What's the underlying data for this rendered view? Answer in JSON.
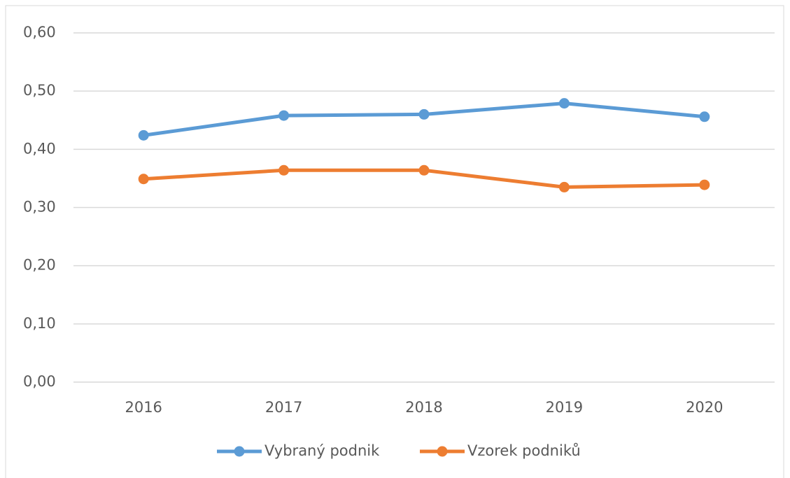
{
  "chart_data": {
    "type": "line",
    "categories": [
      "2016",
      "2017",
      "2018",
      "2019",
      "2020"
    ],
    "series": [
      {
        "name": "Vybraný podnik",
        "color": "#5b9bd5",
        "values": [
          0.424,
          0.458,
          0.46,
          0.479,
          0.456
        ]
      },
      {
        "name": "Vzorek podniků",
        "color": "#ed7d31",
        "values": [
          0.349,
          0.364,
          0.364,
          0.335,
          0.339
        ]
      }
    ],
    "ylim": [
      0,
      0.6
    ],
    "yticks": [
      {
        "value": 0,
        "label": "0,00"
      },
      {
        "value": 0.1,
        "label": "0,10"
      },
      {
        "value": 0.2,
        "label": "0,20"
      },
      {
        "value": 0.3,
        "label": "0,30"
      },
      {
        "value": 0.4,
        "label": "0,40"
      },
      {
        "value": 0.5,
        "label": "0,50"
      },
      {
        "value": 0.6,
        "label": "0,60"
      }
    ],
    "grid": true,
    "legend": "bottom"
  }
}
